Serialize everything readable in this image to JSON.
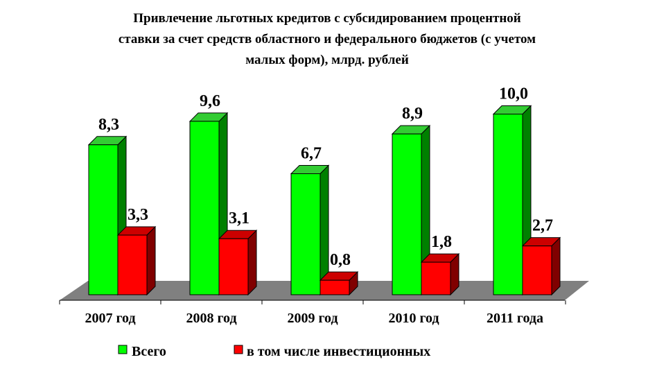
{
  "chart_data": {
    "type": "bar",
    "title_lines": [
      "Привлечение льготных кредитов с субсидированием процентной",
      "ставки за счет средств областного и федерального бюджетов (с учетом",
      "малых форм),  млрд. рублей"
    ],
    "categories": [
      "2007 год",
      "2008 год",
      "2009 год",
      "2010 год",
      "2011 года"
    ],
    "series": [
      {
        "name": "Всего",
        "values": [
          8.3,
          9.6,
          6.7,
          8.9,
          10.0
        ],
        "labels": [
          "8,3",
          "9,6",
          "6,7",
          "8,9",
          "10,0"
        ]
      },
      {
        "name": "в том числе инвестиционных",
        "values": [
          3.3,
          3.1,
          0.8,
          1.8,
          2.7
        ],
        "labels": [
          "3,3",
          "3,1",
          "0,8",
          "1,8",
          "2,7"
        ]
      }
    ],
    "ylim": [
      0,
      10
    ],
    "grid": false,
    "legend_position": "bottom",
    "colors": {
      "series": [
        {
          "front": "#00ff00",
          "side": "#008000",
          "top": "#33cc33"
        },
        {
          "front": "#ff0000",
          "side": "#800000",
          "top": "#cc0000"
        }
      ],
      "floor": "#808080"
    }
  }
}
